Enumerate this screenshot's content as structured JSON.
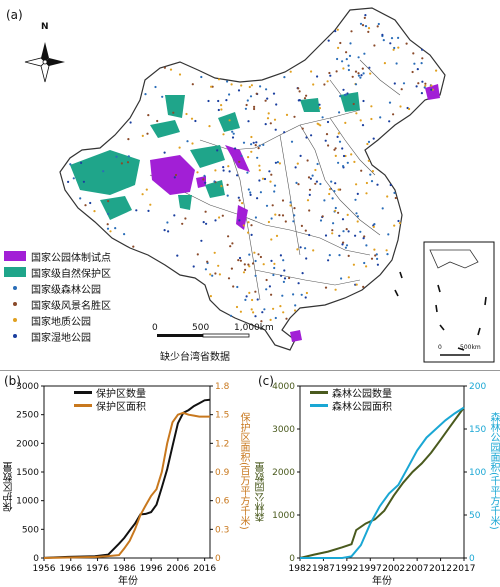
{
  "map": {
    "panel_label": "(a)",
    "north_label": "N",
    "legend": [
      {
        "label": "国家公园体制试点",
        "kind": "swatch",
        "color": "#a21fd6"
      },
      {
        "label": "国家级自然保护区",
        "kind": "swatch",
        "color": "#1fa58a"
      },
      {
        "label": "国家级森林公园",
        "kind": "dot",
        "color": "#2a6db8"
      },
      {
        "label": "国家级风景名胜区",
        "kind": "dot",
        "color": "#8a4a2a"
      },
      {
        "label": "国家地质公园",
        "kind": "dot",
        "color": "#e0a020"
      },
      {
        "label": "国家湿地公园",
        "kind": "dot",
        "color": "#1a3e9e"
      }
    ],
    "scale": {
      "ticks": [
        "0",
        "500",
        "1,000km"
      ]
    },
    "caption": "缺少台湾省数据",
    "inset_scale": {
      "ticks": [
        "0",
        "500km"
      ]
    }
  },
  "chart_data": [
    {
      "type": "line",
      "panel_label": "(b)",
      "xlabel": "年份",
      "ylabel": "保护区数量",
      "y2label": "保护区面积(百万平方千米)",
      "x_ticks": [
        "1956",
        "1966",
        "1976",
        "1986",
        "1996",
        "2006",
        "2016"
      ],
      "y_ticks": [
        "0",
        "500",
        "1000",
        "1500",
        "2000",
        "2500",
        "3000"
      ],
      "y2_ticks": [
        "0",
        "0.3",
        "0.6",
        "0.9",
        "1.2",
        "1.5",
        "1.8"
      ],
      "xlim": [
        1956,
        2018
      ],
      "ylim": [
        0,
        3000
      ],
      "y2lim": [
        0,
        1.8
      ],
      "series": [
        {
          "name": "保护区数量",
          "axis": "left",
          "color": "#111111",
          "x": [
            1956,
            1965,
            1975,
            1980,
            1984,
            1986,
            1988,
            1990,
            1992,
            1994,
            1996,
            1998,
            2000,
            2002,
            2004,
            2006,
            2008,
            2010,
            2012,
            2014,
            2016,
            2018
          ],
          "y": [
            1,
            20,
            30,
            60,
            250,
            350,
            480,
            600,
            760,
            770,
            800,
            930,
            1230,
            1550,
            1950,
            2350,
            2530,
            2580,
            2650,
            2700,
            2750,
            2760
          ]
        },
        {
          "name": "保护区面积",
          "axis": "right",
          "color": "#c8781e",
          "x": [
            1956,
            1965,
            1975,
            1980,
            1984,
            1986,
            1988,
            1990,
            1992,
            1994,
            1996,
            1998,
            2000,
            2002,
            2004,
            2006,
            2008,
            2010,
            2012,
            2014,
            2016,
            2018
          ],
          "y": [
            0,
            0.005,
            0.01,
            0.02,
            0.03,
            0.1,
            0.18,
            0.3,
            0.45,
            0.55,
            0.65,
            0.72,
            0.9,
            1.2,
            1.42,
            1.5,
            1.52,
            1.5,
            1.49,
            1.48,
            1.48,
            1.48
          ]
        }
      ]
    },
    {
      "type": "line",
      "panel_label": "(c)",
      "xlabel": "年份",
      "ylabel": "森林公园数量",
      "y2label": "森林公园面积(千平方千米)",
      "x_ticks": [
        "1982",
        "1987",
        "1992",
        "1997",
        "2002",
        "2007",
        "2012",
        "2017"
      ],
      "y_ticks": [
        "0",
        "1000",
        "2000",
        "3000",
        "4000"
      ],
      "y2_ticks": [
        "0",
        "50",
        "100",
        "150",
        "200"
      ],
      "xlim": [
        1982,
        2017
      ],
      "ylim": [
        0,
        4000
      ],
      "y2lim": [
        0,
        200
      ],
      "series": [
        {
          "name": "森林公园数量",
          "axis": "left",
          "color": "#4a5a1e",
          "x": [
            1982,
            1985,
            1988,
            1991,
            1993,
            1994,
            1996,
            1998,
            2000,
            2002,
            2004,
            2006,
            2008,
            2010,
            2012,
            2014,
            2016,
            2017
          ],
          "y": [
            0,
            80,
            150,
            250,
            320,
            650,
            800,
            900,
            1100,
            1450,
            1750,
            2000,
            2200,
            2450,
            2750,
            3050,
            3350,
            3500
          ]
        },
        {
          "name": "森林公园面积",
          "axis": "right",
          "color": "#1aa7d4",
          "x": [
            1982,
            1985,
            1988,
            1991,
            1993,
            1995,
            1997,
            1999,
            2001,
            2003,
            2005,
            2007,
            2009,
            2011,
            2013,
            2015,
            2017
          ],
          "y": [
            0,
            0,
            0,
            0,
            2,
            15,
            40,
            60,
            75,
            85,
            105,
            125,
            140,
            150,
            160,
            168,
            175
          ]
        }
      ]
    }
  ]
}
